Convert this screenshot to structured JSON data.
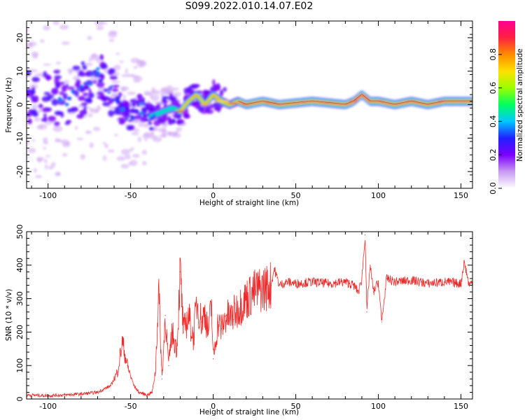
{
  "figure": {
    "title": "S099.2022.010.14.07.E02"
  },
  "chart_data": [
    {
      "type": "heatmap",
      "xlabel": "Height of straight line (km)",
      "ylabel": "Frequency (Hz)",
      "xlim": [
        -113,
        157
      ],
      "ylim": [
        -25,
        25
      ],
      "xticks": [
        -100,
        -50,
        0,
        50,
        100,
        150
      ],
      "yticks": [
        -20,
        -10,
        0,
        10,
        20
      ],
      "colorbar": {
        "label": "Normalized spectral amplitude",
        "range": [
          0,
          1
        ],
        "ticks": [
          0.0,
          0.2,
          0.4,
          0.6,
          0.8
        ],
        "colormap": [
          "#ffffff",
          "#c89af0",
          "#7a00ff",
          "#2020ff",
          "#00c8ff",
          "#00ff60",
          "#9bff00",
          "#ffe000",
          "#ff8c00",
          "#ff2040",
          "#ff0090"
        ]
      },
      "ridge": {
        "description_x": [
          -110,
          -100,
          -90,
          -80,
          -75,
          -70,
          -65,
          -60,
          -55,
          -50,
          -45,
          -40,
          -35,
          -30,
          -25,
          -20,
          -15,
          -10,
          -5,
          0,
          5,
          10,
          15,
          20,
          30,
          40,
          60,
          80,
          85,
          90,
          95,
          100,
          110,
          120,
          130,
          140,
          157
        ],
        "freq": [
          2,
          3,
          1,
          4,
          7,
          9,
          6,
          3,
          -2,
          -5,
          1,
          -4,
          -3,
          -2,
          -1,
          -2,
          1,
          3,
          0,
          3,
          1,
          0,
          1,
          0,
          1,
          0,
          1,
          0,
          1,
          3,
          1,
          1,
          0,
          1,
          0,
          1,
          1
        ]
      }
    },
    {
      "type": "line",
      "xlabel": "Height of straight line (km)",
      "ylabel": "SNR (10 * v/v)",
      "xlim": [
        -113,
        157
      ],
      "ylim": [
        0,
        500
      ],
      "xticks": [
        -100,
        -50,
        0,
        50,
        100,
        150
      ],
      "yticks": [
        0,
        100,
        200,
        300,
        400,
        500
      ],
      "color": "#ee2a2a",
      "series": [
        {
          "x": [
            -113,
            -100,
            -90,
            -80,
            -70,
            -62,
            -58,
            -55,
            -52,
            -48,
            -45,
            -42,
            -40,
            -37,
            -35,
            -33,
            -31,
            -29,
            -27,
            -25,
            -22,
            -20,
            -18,
            -15,
            -12,
            -10,
            -7,
            -5,
            -3,
            -1,
            0,
            3,
            5,
            8,
            10,
            15,
            20,
            25,
            30,
            35,
            37,
            40,
            45,
            50,
            60,
            70,
            80,
            85,
            88,
            90,
            92,
            93,
            95,
            97,
            100,
            102,
            105,
            110,
            120,
            130,
            140,
            150,
            152,
            155,
            157
          ],
          "y": [
            12,
            10,
            12,
            15,
            20,
            40,
            80,
            170,
            100,
            40,
            20,
            15,
            12,
            20,
            80,
            330,
            60,
            250,
            100,
            200,
            150,
            380,
            200,
            250,
            180,
            290,
            230,
            260,
            200,
            280,
            120,
            230,
            210,
            250,
            240,
            270,
            300,
            320,
            330,
            340,
            390,
            340,
            350,
            345,
            350,
            345,
            350,
            340,
            320,
            360,
            490,
            260,
            400,
            320,
            350,
            230,
            360,
            350,
            355,
            345,
            350,
            345,
            410,
            340,
            350
          ]
        }
      ]
    }
  ]
}
